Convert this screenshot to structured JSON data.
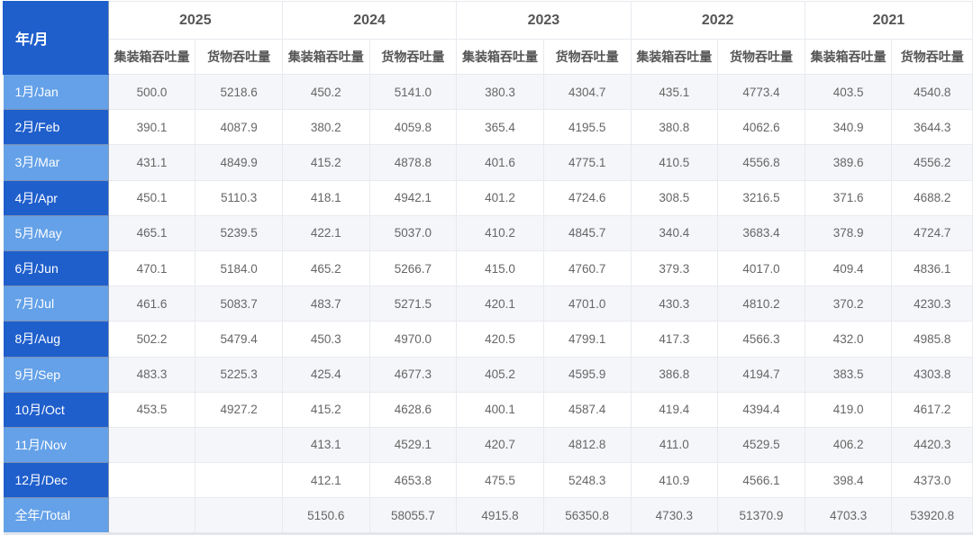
{
  "table": {
    "corner_label": "年/月",
    "years": [
      "2025",
      "2024",
      "2023",
      "2022",
      "2021"
    ],
    "sub_headers": [
      "集装箱吞吐量",
      "货物吞吐量"
    ],
    "colors": {
      "header_blue": "#1f5fcc",
      "row_light_blue": "#64a1e8",
      "stripe": "#f4f6f9"
    },
    "rows": [
      {
        "label": "1月/Jan",
        "values": [
          "500.0",
          "5218.6",
          "450.2",
          "5141.0",
          "380.3",
          "4304.7",
          "435.1",
          "4773.4",
          "403.5",
          "4540.8"
        ]
      },
      {
        "label": "2月/Feb",
        "values": [
          "390.1",
          "4087.9",
          "380.2",
          "4059.8",
          "365.4",
          "4195.5",
          "380.8",
          "4062.6",
          "340.9",
          "3644.3"
        ]
      },
      {
        "label": "3月/Mar",
        "values": [
          "431.1",
          "4849.9",
          "415.2",
          "4878.8",
          "401.6",
          "4775.1",
          "410.5",
          "4556.8",
          "389.6",
          "4556.2"
        ]
      },
      {
        "label": "4月/Apr",
        "values": [
          "450.1",
          "5110.3",
          "418.1",
          "4942.1",
          "401.2",
          "4724.6",
          "308.5",
          "3216.5",
          "371.6",
          "4688.2"
        ]
      },
      {
        "label": "5月/May",
        "values": [
          "465.1",
          "5239.5",
          "422.1",
          "5037.0",
          "410.2",
          "4845.7",
          "340.4",
          "3683.4",
          "378.9",
          "4724.7"
        ]
      },
      {
        "label": "6月/Jun",
        "values": [
          "470.1",
          "5184.0",
          "465.2",
          "5266.7",
          "415.0",
          "4760.7",
          "379.3",
          "4017.0",
          "409.4",
          "4836.1"
        ]
      },
      {
        "label": "7月/Jul",
        "values": [
          "461.6",
          "5083.7",
          "483.7",
          "5271.5",
          "420.1",
          "4701.0",
          "430.3",
          "4810.2",
          "370.2",
          "4230.3"
        ]
      },
      {
        "label": "8月/Aug",
        "values": [
          "502.2",
          "5479.4",
          "450.3",
          "4970.0",
          "420.5",
          "4799.1",
          "417.3",
          "4566.3",
          "432.0",
          "4985.8"
        ]
      },
      {
        "label": "9月/Sep",
        "values": [
          "483.3",
          "5225.3",
          "425.4",
          "4677.3",
          "405.2",
          "4595.9",
          "386.8",
          "4194.7",
          "383.5",
          "4303.8"
        ]
      },
      {
        "label": "10月/Oct",
        "values": [
          "453.5",
          "4927.2",
          "415.2",
          "4628.6",
          "400.1",
          "4587.4",
          "419.4",
          "4394.4",
          "419.0",
          "4617.2"
        ]
      },
      {
        "label": "11月/Nov",
        "values": [
          "",
          "",
          "413.1",
          "4529.1",
          "420.7",
          "4812.8",
          "411.0",
          "4529.5",
          "406.2",
          "4420.3"
        ]
      },
      {
        "label": "12月/Dec",
        "values": [
          "",
          "",
          "412.1",
          "4653.8",
          "475.5",
          "5248.3",
          "410.9",
          "4566.1",
          "398.4",
          "4373.0"
        ]
      },
      {
        "label": "全年/Total",
        "values": [
          "",
          "",
          "5150.6",
          "58055.7",
          "4915.8",
          "56350.8",
          "4730.3",
          "51370.9",
          "4703.3",
          "53920.8"
        ]
      }
    ]
  }
}
